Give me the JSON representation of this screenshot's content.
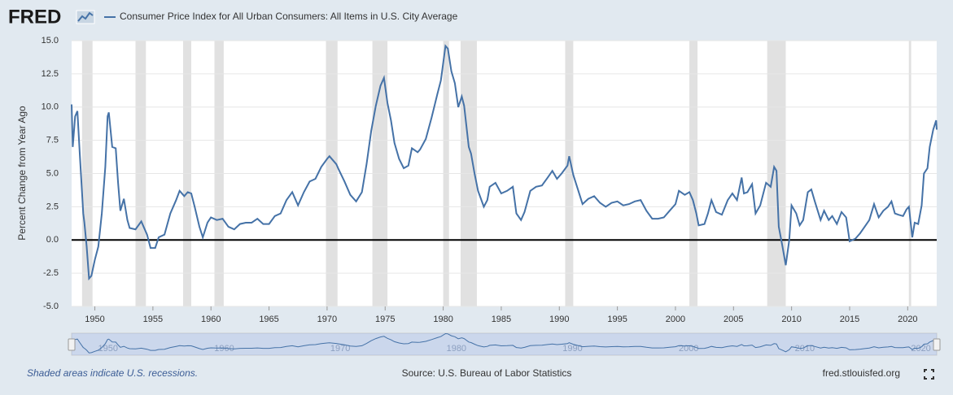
{
  "logo": "FRED",
  "footer": {
    "note": "Shaded areas indicate U.S. recessions.",
    "source": "Source: U.S. Bureau of Labor Statistics",
    "site": "fred.stlouisfed.org"
  },
  "chart_data": {
    "type": "line",
    "ylabel": "Percent Change from Year Ago",
    "x": [
      1948.0,
      1948.1,
      1948.3,
      1948.5,
      1948.7,
      1949.0,
      1949.1,
      1949.3,
      1949.5,
      1949.7,
      1950.0,
      1950.3,
      1950.6,
      1950.9,
      1951.1,
      1951.2,
      1951.5,
      1951.8,
      1952.0,
      1952.2,
      1952.5,
      1952.8,
      1953.0,
      1953.5,
      1954.0,
      1954.5,
      1954.8,
      1955.2,
      1955.5,
      1956.0,
      1956.5,
      1957.0,
      1957.3,
      1957.7,
      1958.0,
      1958.3,
      1958.6,
      1959.0,
      1959.3,
      1959.7,
      1960.0,
      1960.5,
      1961.0,
      1961.5,
      1962.0,
      1962.5,
      1963.0,
      1963.5,
      1964.0,
      1964.5,
      1965.0,
      1965.5,
      1966.0,
      1966.5,
      1967.0,
      1967.5,
      1968.0,
      1968.5,
      1969.0,
      1969.5,
      1970.0,
      1970.2,
      1970.8,
      1971.0,
      1971.5,
      1972.0,
      1972.5,
      1973.0,
      1973.4,
      1973.8,
      1974.2,
      1974.6,
      1974.9,
      1975.2,
      1975.5,
      1975.8,
      1976.2,
      1976.6,
      1977.0,
      1977.3,
      1977.8,
      1978.0,
      1978.5,
      1979.0,
      1979.5,
      1979.8,
      1980.2,
      1980.4,
      1980.7,
      1981.0,
      1981.3,
      1981.6,
      1981.8,
      1982.2,
      1982.4,
      1982.7,
      1983.0,
      1983.5,
      1983.8,
      1984.0,
      1984.5,
      1985.0,
      1985.5,
      1986.0,
      1986.3,
      1986.7,
      1987.0,
      1987.5,
      1988.0,
      1988.5,
      1989.0,
      1989.4,
      1989.8,
      1990.2,
      1990.7,
      1990.85,
      1991.2,
      1991.6,
      1992.0,
      1992.5,
      1993.0,
      1993.5,
      1994.0,
      1994.5,
      1995.0,
      1995.5,
      1996.0,
      1996.5,
      1997.0,
      1997.5,
      1998.0,
      1998.5,
      1999.0,
      1999.5,
      2000.0,
      2000.3,
      2000.8,
      2001.2,
      2001.5,
      2001.8,
      2002.0,
      2002.5,
      2002.8,
      2003.1,
      2003.5,
      2004.0,
      2004.5,
      2004.9,
      2005.3,
      2005.7,
      2005.9,
      2006.2,
      2006.6,
      2006.9,
      2007.3,
      2007.8,
      2008.2,
      2008.5,
      2008.7,
      2008.9,
      2009.2,
      2009.5,
      2009.8,
      2010.0,
      2010.4,
      2010.7,
      2011.0,
      2011.4,
      2011.7,
      2012.0,
      2012.5,
      2012.8,
      2013.2,
      2013.5,
      2013.9,
      2014.3,
      2014.7,
      2015.0,
      2015.5,
      2015.9,
      2016.3,
      2016.7,
      2017.1,
      2017.5,
      2017.9,
      2018.3,
      2018.6,
      2018.9,
      2019.2,
      2019.6,
      2019.9,
      2020.1,
      2020.4,
      2020.6,
      2020.9,
      2021.2,
      2021.4,
      2021.7,
      2021.9,
      2022.2,
      2022.45,
      2022.5
    ],
    "series": [
      {
        "name": "Consumer Price Index for All Urban Consumers: All Items in U.S. City Average",
        "color": "#4572a7",
        "values": [
          10.2,
          7.0,
          9.3,
          9.7,
          6.5,
          2.0,
          1.3,
          -0.5,
          -2.9,
          -2.7,
          -1.5,
          -0.5,
          2.0,
          5.5,
          9.3,
          9.6,
          7.0,
          6.9,
          4.3,
          2.2,
          3.1,
          1.5,
          0.9,
          0.8,
          1.4,
          0.4,
          -0.6,
          -0.6,
          0.2,
          0.4,
          2.0,
          3.0,
          3.7,
          3.3,
          3.6,
          3.5,
          2.5,
          1.0,
          0.2,
          1.3,
          1.7,
          1.5,
          1.6,
          1.0,
          0.8,
          1.2,
          1.3,
          1.3,
          1.6,
          1.2,
          1.2,
          1.8,
          2.0,
          3.0,
          3.6,
          2.6,
          3.6,
          4.4,
          4.6,
          5.5,
          6.1,
          6.3,
          5.7,
          5.3,
          4.4,
          3.4,
          2.9,
          3.6,
          5.7,
          8.2,
          10.1,
          11.6,
          12.2,
          10.3,
          9.0,
          7.3,
          6.1,
          5.4,
          5.6,
          6.9,
          6.6,
          6.8,
          7.6,
          9.2,
          11.0,
          12.0,
          14.6,
          14.4,
          12.7,
          11.8,
          10.0,
          10.8,
          10.1,
          7.0,
          6.5,
          5.0,
          3.7,
          2.5,
          3.0,
          4.0,
          4.3,
          3.5,
          3.7,
          4.0,
          2.0,
          1.5,
          2.1,
          3.7,
          4.0,
          4.1,
          4.7,
          5.2,
          4.6,
          5.0,
          5.6,
          6.3,
          4.9,
          3.8,
          2.7,
          3.1,
          3.3,
          2.8,
          2.5,
          2.8,
          2.9,
          2.6,
          2.7,
          2.9,
          3.0,
          2.2,
          1.6,
          1.6,
          1.7,
          2.2,
          2.7,
          3.7,
          3.4,
          3.6,
          3.0,
          2.0,
          1.1,
          1.2,
          2.0,
          3.0,
          2.1,
          1.9,
          3.0,
          3.5,
          3.0,
          4.7,
          3.5,
          3.6,
          4.2,
          2.0,
          2.6,
          4.3,
          4.0,
          5.5,
          5.2,
          1.0,
          -0.4,
          -1.9,
          0.0,
          2.6,
          2.0,
          1.1,
          1.5,
          3.6,
          3.8,
          2.9,
          1.5,
          2.2,
          1.5,
          1.8,
          1.2,
          2.1,
          1.7,
          -0.1,
          0.1,
          0.5,
          1.0,
          1.5,
          2.7,
          1.7,
          2.2,
          2.5,
          2.9,
          2.0,
          1.9,
          1.8,
          2.3,
          2.5,
          0.2,
          1.3,
          1.2,
          2.6,
          5.0,
          5.4,
          7.0,
          8.3,
          9.0,
          8.3
        ]
      }
    ],
    "xlim": [
      1948,
      2022.5
    ],
    "xticks": [
      1950,
      1955,
      1960,
      1965,
      1970,
      1975,
      1980,
      1985,
      1990,
      1995,
      2000,
      2005,
      2010,
      2015,
      2020
    ],
    "ylim": [
      -5,
      15
    ],
    "yticks": [
      {
        "value": -5,
        "label": "-5.0"
      },
      -2.5,
      {
        "value": 0,
        "label": "0.0"
      },
      2.5,
      {
        "value": 5,
        "label": "5.0"
      },
      7.5,
      {
        "value": 10,
        "label": "10.0"
      },
      12.5,
      {
        "value": 15,
        "label": "15.0"
      }
    ],
    "grid": true,
    "recessions": [
      [
        1948.9,
        1949.8
      ],
      [
        1953.5,
        1954.4
      ],
      [
        1957.6,
        1958.3
      ],
      [
        1960.3,
        1961.1
      ],
      [
        1969.9,
        1970.9
      ],
      [
        1973.9,
        1975.2
      ],
      [
        1980.0,
        1980.5
      ],
      [
        1981.5,
        1982.9
      ],
      [
        1990.5,
        1991.2
      ],
      [
        2001.2,
        2001.9
      ],
      [
        2007.9,
        2009.5
      ],
      [
        2020.1,
        2020.3
      ]
    ],
    "recession_color": "#e1e1e1",
    "navigator_xticks": [
      1950,
      1960,
      1970,
      1980,
      1990,
      2000,
      2010,
      2020
    ]
  }
}
